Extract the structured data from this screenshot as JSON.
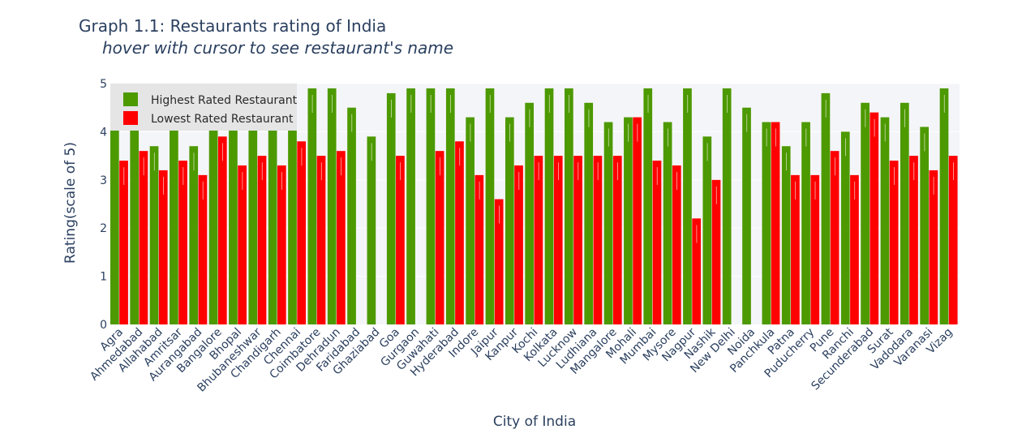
{
  "chart_data": {
    "type": "bar",
    "title": "Graph 1.1: Restaurants rating of India",
    "subtitle": "hover with cursor to see restaurant's name",
    "xlabel": "City of India",
    "ylabel": "Rating(scale of 5)",
    "ylim": [
      0,
      5
    ],
    "yticks": [
      0,
      1,
      2,
      3,
      4,
      5
    ],
    "grid": true,
    "legend_position": "top-left",
    "categories": [
      "Agra",
      "Ahmedabad",
      "Allahabad",
      "Amritsar",
      "Aurangabad",
      "Bangalore",
      "Bhopal",
      "Bhubaneshwar",
      "Chandigarh",
      "Chennai",
      "Coimbatore",
      "Dehradun",
      "Faridabad",
      "Ghaziabad",
      "Goa",
      "Gurgaon",
      "Guwahati",
      "Hyderabad",
      "Indore",
      "Jaipur",
      "Kanpur",
      "Kochi",
      "Kolkata",
      "Lucknow",
      "Ludhiana",
      "Mangalore",
      "Mohali",
      "Mumbai",
      "Mysore",
      "Nagpur",
      "Nashik",
      "New Delhi",
      "Noida",
      "Panchkula",
      "Patna",
      "Puducherry",
      "Pune",
      "Ranchi",
      "Secunderabad",
      "Surat",
      "Vadodara",
      "Varanasi",
      "Vizag"
    ],
    "series": [
      {
        "name": "Highest Rated Restaurant",
        "color": "#4d9900",
        "values": [
          4.9,
          4.9,
          3.7,
          4.9,
          3.7,
          4.9,
          4.9,
          4.9,
          4.9,
          4.9,
          4.9,
          4.9,
          4.5,
          3.9,
          4.8,
          4.9,
          4.9,
          4.9,
          4.3,
          4.9,
          4.3,
          4.6,
          4.9,
          4.9,
          4.6,
          4.2,
          4.3,
          4.9,
          4.2,
          4.9,
          3.9,
          4.9,
          4.5,
          4.2,
          3.7,
          4.2,
          4.8,
          4.0,
          4.6,
          4.3,
          4.6,
          4.1,
          4.9
        ]
      },
      {
        "name": "Lowest Rated Restaurant",
        "color": "#ff0000",
        "values": [
          3.4,
          3.6,
          3.2,
          3.4,
          3.1,
          3.9,
          3.3,
          3.5,
          3.3,
          3.8,
          3.5,
          3.6,
          0.0,
          0.0,
          3.5,
          0.0,
          3.6,
          3.8,
          3.1,
          2.6,
          3.3,
          3.5,
          3.5,
          3.5,
          3.5,
          3.5,
          4.3,
          3.4,
          3.3,
          2.2,
          3.0,
          0.0,
          0.0,
          4.2,
          3.1,
          3.1,
          3.6,
          3.1,
          4.4,
          3.4,
          3.5,
          3.2,
          3.5
        ]
      }
    ]
  },
  "colors": {
    "plot_bg": "#f4f5f9",
    "grid": "#ffffff",
    "text": "#2a3f5f",
    "legend_bg": "#e5e5e5"
  }
}
